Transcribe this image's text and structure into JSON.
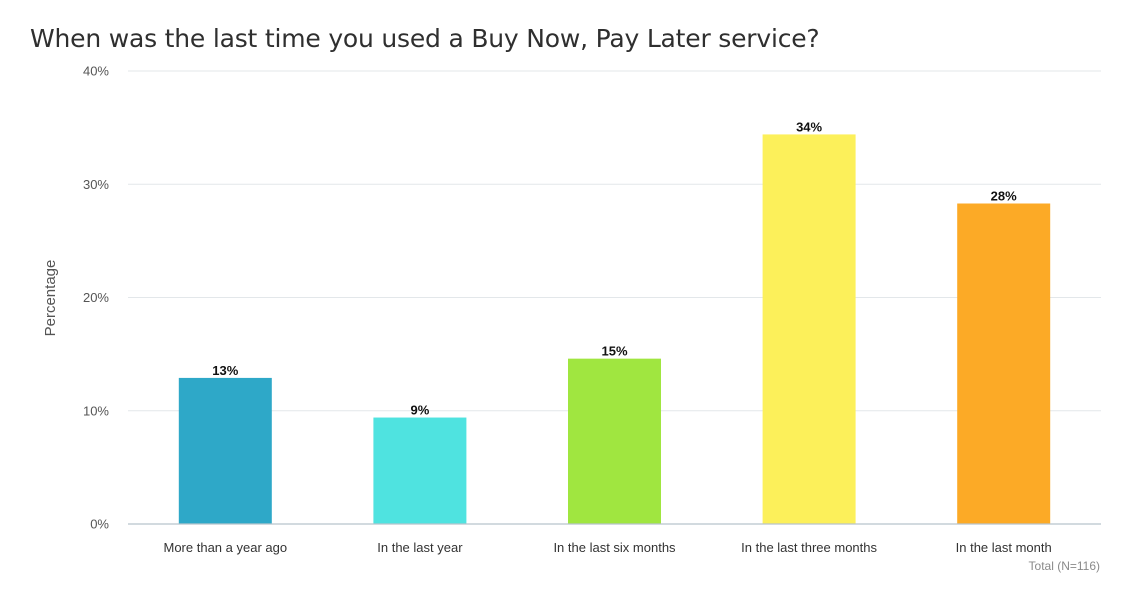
{
  "chart_data": {
    "type": "bar",
    "title": "When was the last time you used a Buy Now, Pay Later service?",
    "ylabel": "Percentage",
    "xlabel": "",
    "ylim": [
      0,
      40
    ],
    "yticks": [
      0,
      10,
      20,
      30,
      40
    ],
    "ytick_labels": [
      "0%",
      "10%",
      "20%",
      "30%",
      "40%"
    ],
    "categories": [
      "More than a year ago",
      "In the last year",
      "In the last six months",
      "In the last three months",
      "In the last month"
    ],
    "values": [
      12.9,
      9.4,
      14.6,
      34.4,
      28.3
    ],
    "data_labels": [
      "13%",
      "9%",
      "15%",
      "34%",
      "28%"
    ],
    "colors": [
      "#2EA8C8",
      "#4FE3E0",
      "#A0E640",
      "#FCF05A",
      "#FCAA26"
    ],
    "grid": true,
    "footnote": "Total (N=116)"
  }
}
